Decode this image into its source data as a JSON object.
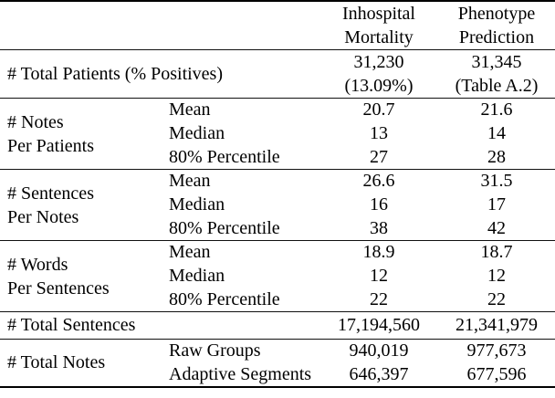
{
  "header": {
    "inhospital": {
      "line1": "Inhospital",
      "line2": "Mortality"
    },
    "phenotype": {
      "line1": "Phenotype",
      "line2": "Prediction"
    }
  },
  "rows": {
    "total_patients": {
      "label": "# Total Patients (% Positives)",
      "inhospital": {
        "line1": "31,230",
        "line2": "(13.09%)"
      },
      "phenotype": {
        "line1": "31,345",
        "line2": "(Table A.2)"
      }
    },
    "notes_per_patients": {
      "label": {
        "line1": "# Notes",
        "line2": "Per Patients"
      },
      "stats": [
        {
          "name": "Mean",
          "inhospital": "20.7",
          "phenotype": "21.6"
        },
        {
          "name": "Median",
          "inhospital": "13",
          "phenotype": "14"
        },
        {
          "name": "80% Percentile",
          "inhospital": "27",
          "phenotype": "28"
        }
      ]
    },
    "sentences_per_notes": {
      "label": {
        "line1": "# Sentences",
        "line2": "Per Notes"
      },
      "stats": [
        {
          "name": "Mean",
          "inhospital": "26.6",
          "phenotype": "31.5"
        },
        {
          "name": "Median",
          "inhospital": "16",
          "phenotype": "17"
        },
        {
          "name": "80% Percentile",
          "inhospital": "38",
          "phenotype": "42"
        }
      ]
    },
    "words_per_sentences": {
      "label": {
        "line1": "# Words",
        "line2": "Per Sentences"
      },
      "stats": [
        {
          "name": "Mean",
          "inhospital": "18.9",
          "phenotype": "18.7"
        },
        {
          "name": "Median",
          "inhospital": "12",
          "phenotype": "12"
        },
        {
          "name": "80% Percentile",
          "inhospital": "22",
          "phenotype": "22"
        }
      ]
    },
    "total_sentences": {
      "label": "# Total Sentences",
      "inhospital": "17,194,560",
      "phenotype": "21,341,979"
    },
    "total_notes": {
      "label": "# Total Notes",
      "stats": [
        {
          "name": "Raw Groups",
          "inhospital": "940,019",
          "phenotype": "977,673"
        },
        {
          "name": "Adaptive Segments",
          "inhospital": "646,397",
          "phenotype": "677,596"
        }
      ]
    }
  }
}
